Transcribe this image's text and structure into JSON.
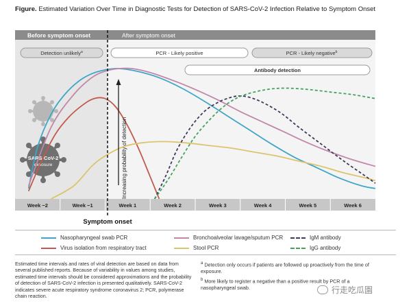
{
  "figure": {
    "title_lead": "Figure.",
    "title_text": "Estimated Variation Over Time in Diagnostic Tests for Detection of SARS-CoV-2 Infection Relative to Symptom Onset",
    "phase_before": "Before symptom onset",
    "phase_after": "After symptom onset",
    "detect_unlikely": "Detection unlikely",
    "detect_unlikely_sup": "a",
    "pcr_positive": "PCR - Likely positive",
    "pcr_negative": "PCR - Likely negative",
    "pcr_negative_sup": "b",
    "antibody_detection": "Antibody detection",
    "virus_label": "SARS-CoV-2",
    "virus_sublabel": "exposure",
    "symptom_onset": "Symptom onset",
    "colors": {
      "nasopharyngeal": "#3fa6c8",
      "bronchoalveolar": "#c286a8",
      "virus_isolation": "#c25a4d",
      "stool": "#dcc46e",
      "igm": "#3d3b5c",
      "igg": "#43a35d",
      "phase_band": "#8b8b8b",
      "phase_before_bg": "#e6e6e6",
      "phase_after_bg": "#f3f3f3",
      "week_band": "#c7c7c7"
    }
  },
  "chart_data": {
    "type": "line",
    "title": "Estimated Variation Over Time in Diagnostic Tests for Detection of SARS-CoV-2 Infection Relative to Symptom Onset",
    "xlabel": "",
    "ylabel": "Increasing probability of detection",
    "categories": [
      "Week −2",
      "Week −1",
      "Week 1",
      "Week 2",
      "Week 3",
      "Week 4",
      "Week 5",
      "Week 6"
    ],
    "xlim": [
      -2,
      6
    ],
    "ylim": [
      0,
      1
    ],
    "symptom_onset_x": 0,
    "series": [
      {
        "name": "Nasopharyngeal swab PCR",
        "style": "solid",
        "color_key": "nasopharyngeal",
        "x": [
          -1.7,
          -1.5,
          -1.2,
          -0.9,
          -0.6,
          -0.3,
          0,
          0.3,
          0.7,
          1.2,
          1.7,
          2.2,
          2.7,
          3.2,
          3.7,
          4.2,
          4.7,
          5.2,
          5.7,
          6.0
        ],
        "y": [
          0.08,
          0.4,
          0.65,
          0.8,
          0.9,
          0.96,
          0.99,
          1.0,
          0.98,
          0.93,
          0.85,
          0.75,
          0.64,
          0.53,
          0.42,
          0.32,
          0.24,
          0.16,
          0.1,
          0.08
        ]
      },
      {
        "name": "Bronchoalveolar lavage/sputum PCR",
        "style": "solid",
        "color_key": "bronchoalveolar",
        "x": [
          -1.7,
          -1.2,
          -0.7,
          -0.3,
          0,
          0.3,
          0.6,
          1.0,
          1.5,
          2.0,
          2.5,
          3.0,
          3.5,
          4.0,
          4.5,
          5.0,
          5.5,
          6.0
        ],
        "y": [
          0.1,
          0.55,
          0.8,
          0.93,
          0.98,
          1.0,
          1.0,
          0.97,
          0.91,
          0.84,
          0.76,
          0.67,
          0.59,
          0.51,
          0.43,
          0.36,
          0.3,
          0.25
        ]
      },
      {
        "name": "Virus isolation from respiratory tract",
        "style": "solid",
        "color_key": "virus_isolation",
        "x": [
          -1.7,
          -1.4,
          -1.1,
          -0.8,
          -0.5,
          -0.25,
          0,
          0.25,
          0.5,
          0.75,
          1.0,
          1.2
        ],
        "y": [
          0.06,
          0.3,
          0.5,
          0.63,
          0.72,
          0.77,
          0.77,
          0.7,
          0.56,
          0.38,
          0.17,
          0.0
        ]
      },
      {
        "name": "Stool PCR",
        "style": "solid",
        "color_key": "stool",
        "x": [
          -1.2,
          -0.7,
          -0.3,
          0,
          0.4,
          0.8,
          1.3,
          1.8,
          2.3,
          2.8,
          3.3,
          3.8,
          4.3,
          4.8,
          5.3,
          5.8,
          6.0
        ],
        "y": [
          0.0,
          0.1,
          0.25,
          0.33,
          0.4,
          0.43,
          0.44,
          0.43,
          0.41,
          0.39,
          0.36,
          0.33,
          0.29,
          0.25,
          0.2,
          0.16,
          0.14
        ]
      },
      {
        "name": "IgM antibody",
        "style": "dashed",
        "color_key": "igm",
        "x": [
          1.1,
          1.35,
          1.6,
          1.9,
          2.2,
          2.5,
          2.8,
          3.0,
          3.2,
          3.5,
          3.9,
          4.3,
          4.8,
          5.3,
          5.8,
          6.0
        ],
        "y": [
          0.0,
          0.18,
          0.38,
          0.55,
          0.67,
          0.74,
          0.78,
          0.79,
          0.78,
          0.74,
          0.66,
          0.55,
          0.42,
          0.29,
          0.17,
          0.12
        ]
      },
      {
        "name": "IgG antibody",
        "style": "dashed",
        "color_key": "igg",
        "x": [
          1.1,
          1.4,
          1.7,
          2.0,
          2.3,
          2.6,
          2.9,
          3.2,
          3.6,
          4.0,
          4.5,
          5.0,
          5.5,
          6.0
        ],
        "y": [
          0.0,
          0.15,
          0.32,
          0.48,
          0.6,
          0.7,
          0.77,
          0.81,
          0.84,
          0.85,
          0.84,
          0.82,
          0.8,
          0.77
        ]
      }
    ],
    "legend": {
      "placement": "bottom",
      "entries": [
        "Nasopharyngeal swab PCR",
        "Bronchoalveolar lavage/sputum PCR",
        "IgM antibody",
        "Virus isolation from respiratory tract",
        "Stool PCR",
        "IgG antibody"
      ]
    }
  },
  "footnotes": {
    "left": "Estimated time intervals and rates of viral detection are based on data from several published reports. Because of variability in values among studies, estimated time intervals should be considered approximations and the probability of detection of SARS-CoV-2 infection is presented qualitatively. SARS-CoV-2 indicates severe acute respiratory syndrome coronavirus 2; PCR, polymerase chain reaction.",
    "note_a_marker": "a",
    "note_a": "Detection only occurs if patients are followed up proactively from the time of exposure.",
    "note_b_marker": "b",
    "note_b": "More likely to register a negative than a positive result by PCR of a nasopharyngeal swab."
  },
  "watermark": {
    "text": "行走吃瓜園"
  }
}
